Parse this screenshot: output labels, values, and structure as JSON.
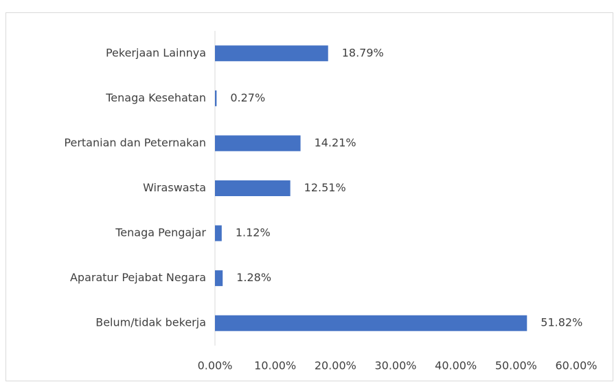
{
  "chart_data": {
    "type": "barh",
    "categories": [
      "Pekerjaan Lainnya",
      "Tenaga Kesehatan",
      "Pertanian dan Peternakan",
      "Wiraswasta",
      "Tenaga Pengajar",
      "Aparatur Pejabat Negara",
      "Belum/tidak bekerja"
    ],
    "values": [
      18.79,
      0.27,
      14.21,
      12.51,
      1.12,
      1.28,
      51.82
    ],
    "value_labels": [
      "18.79%",
      "0.27%",
      "14.21%",
      "12.51%",
      "1.12%",
      "1.28%",
      "51.82%"
    ],
    "color": "#4472c4",
    "xlim": [
      0,
      60
    ],
    "xticks": [
      {
        "value": 0,
        "label": "0.00%"
      },
      {
        "value": 10,
        "label": "10.00%"
      },
      {
        "value": 20,
        "label": "20.00%"
      },
      {
        "value": 30,
        "label": "30.00%"
      },
      {
        "value": 40,
        "label": "40.00%"
      },
      {
        "value": 50,
        "label": "50.00%"
      },
      {
        "value": 60,
        "label": "60.00%"
      }
    ],
    "grid": false
  }
}
